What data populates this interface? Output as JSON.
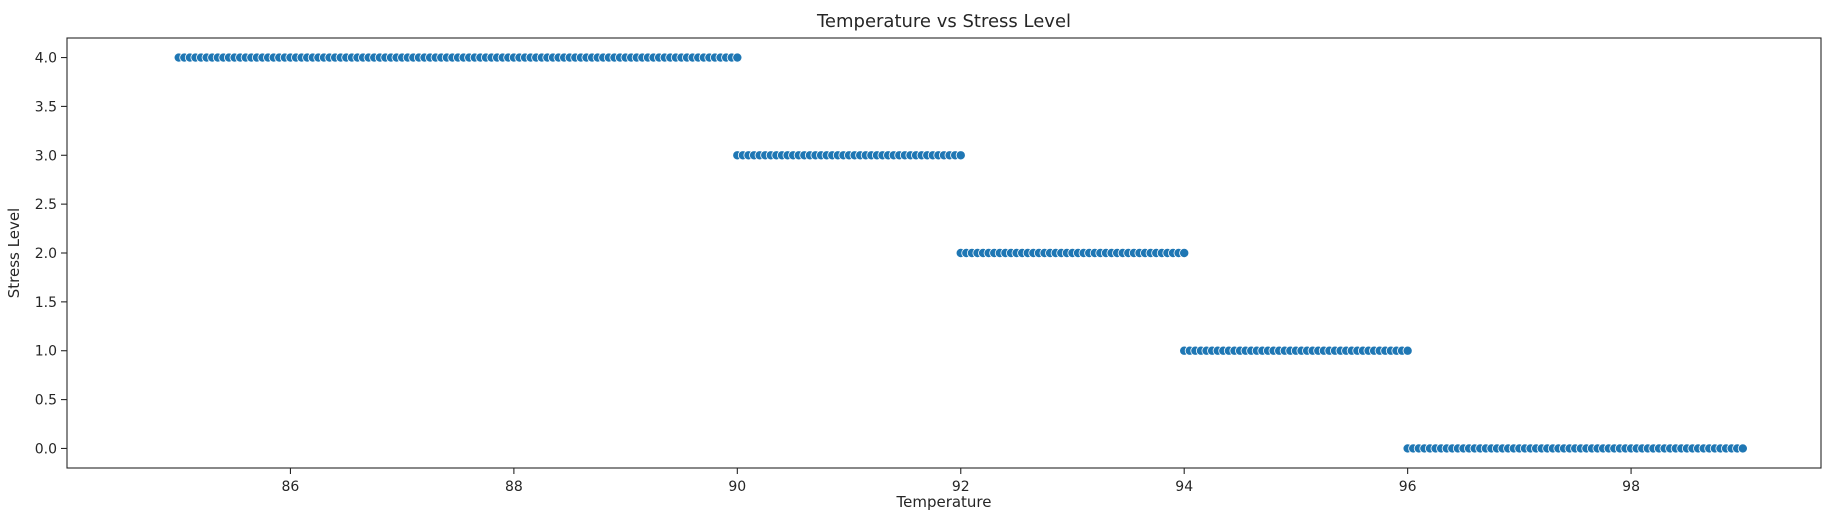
{
  "chart_data": {
    "type": "scatter",
    "title": "Temperature vs Stress Level",
    "xlabel": "Temperature",
    "ylabel": "Stress Level",
    "xlim": [
      84.0,
      99.7
    ],
    "ylim": [
      -0.2,
      4.2
    ],
    "x_ticks": [
      86,
      88,
      90,
      92,
      94,
      96,
      98
    ],
    "y_ticks": [
      0.0,
      0.5,
      1.0,
      1.5,
      2.0,
      2.5,
      3.0,
      3.5,
      4.0
    ],
    "grid": false,
    "legend": "none",
    "marker_color": "#1f77b4",
    "marker_edge_color": "#ffffff",
    "clusters": [
      {
        "stress_level": 4.0,
        "temperature_min": 85.0,
        "temperature_max": 90.0
      },
      {
        "stress_level": 3.0,
        "temperature_min": 90.0,
        "temperature_max": 92.0
      },
      {
        "stress_level": 2.0,
        "temperature_min": 92.0,
        "temperature_max": 94.0
      },
      {
        "stress_level": 1.0,
        "temperature_min": 94.0,
        "temperature_max": 96.0
      },
      {
        "stress_level": 0.0,
        "temperature_min": 96.0,
        "temperature_max": 99.0
      }
    ],
    "series": [
      {
        "points": [
          [
            85.0,
            4.0
          ],
          [
            85.05,
            4.0
          ],
          [
            85.1,
            4.0
          ],
          [
            85.15,
            4.0
          ],
          [
            85.2,
            4.0
          ],
          [
            85.25,
            4.0
          ],
          [
            85.3,
            4.0
          ],
          [
            85.35,
            4.0
          ],
          [
            85.4,
            4.0
          ],
          [
            85.45,
            4.0
          ],
          [
            85.5,
            4.0
          ],
          [
            85.55,
            4.0
          ],
          [
            85.6,
            4.0
          ],
          [
            85.65,
            4.0
          ],
          [
            85.7,
            4.0
          ],
          [
            85.75,
            4.0
          ],
          [
            85.8,
            4.0
          ],
          [
            85.85,
            4.0
          ],
          [
            85.9,
            4.0
          ],
          [
            85.95,
            4.0
          ],
          [
            86.0,
            4.0
          ],
          [
            86.05,
            4.0
          ],
          [
            86.1,
            4.0
          ],
          [
            86.15,
            4.0
          ],
          [
            86.2,
            4.0
          ],
          [
            86.25,
            4.0
          ],
          [
            86.3,
            4.0
          ],
          [
            86.35,
            4.0
          ],
          [
            86.4,
            4.0
          ],
          [
            86.45,
            4.0
          ],
          [
            86.5,
            4.0
          ],
          [
            86.55,
            4.0
          ],
          [
            86.6,
            4.0
          ],
          [
            86.65,
            4.0
          ],
          [
            86.7,
            4.0
          ],
          [
            86.75,
            4.0
          ],
          [
            86.8,
            4.0
          ],
          [
            86.85,
            4.0
          ],
          [
            86.9,
            4.0
          ],
          [
            86.95,
            4.0
          ],
          [
            87.0,
            4.0
          ],
          [
            87.05,
            4.0
          ],
          [
            87.1,
            4.0
          ],
          [
            87.15,
            4.0
          ],
          [
            87.2,
            4.0
          ],
          [
            87.25,
            4.0
          ],
          [
            87.3,
            4.0
          ],
          [
            87.35,
            4.0
          ],
          [
            87.4,
            4.0
          ],
          [
            87.45,
            4.0
          ],
          [
            87.5,
            4.0
          ],
          [
            87.55,
            4.0
          ],
          [
            87.6,
            4.0
          ],
          [
            87.65,
            4.0
          ],
          [
            87.7,
            4.0
          ],
          [
            87.75,
            4.0
          ],
          [
            87.8,
            4.0
          ],
          [
            87.85,
            4.0
          ],
          [
            87.9,
            4.0
          ],
          [
            87.95,
            4.0
          ],
          [
            88.0,
            4.0
          ],
          [
            88.05,
            4.0
          ],
          [
            88.1,
            4.0
          ],
          [
            88.15,
            4.0
          ],
          [
            88.2,
            4.0
          ],
          [
            88.25,
            4.0
          ],
          [
            88.3,
            4.0
          ],
          [
            88.35,
            4.0
          ],
          [
            88.4,
            4.0
          ],
          [
            88.45,
            4.0
          ],
          [
            88.5,
            4.0
          ],
          [
            88.55,
            4.0
          ],
          [
            88.6,
            4.0
          ],
          [
            88.65,
            4.0
          ],
          [
            88.7,
            4.0
          ],
          [
            88.75,
            4.0
          ],
          [
            88.8,
            4.0
          ],
          [
            88.85,
            4.0
          ],
          [
            88.9,
            4.0
          ],
          [
            88.95,
            4.0
          ],
          [
            89.0,
            4.0
          ],
          [
            89.05,
            4.0
          ],
          [
            89.1,
            4.0
          ],
          [
            89.15,
            4.0
          ],
          [
            89.2,
            4.0
          ],
          [
            89.25,
            4.0
          ],
          [
            89.3,
            4.0
          ],
          [
            89.35,
            4.0
          ],
          [
            89.4,
            4.0
          ],
          [
            89.45,
            4.0
          ],
          [
            89.5,
            4.0
          ],
          [
            89.55,
            4.0
          ],
          [
            89.6,
            4.0
          ],
          [
            89.65,
            4.0
          ],
          [
            89.7,
            4.0
          ],
          [
            89.75,
            4.0
          ],
          [
            89.8,
            4.0
          ],
          [
            89.85,
            4.0
          ],
          [
            89.9,
            4.0
          ],
          [
            89.95,
            4.0
          ],
          [
            90.0,
            4.0
          ],
          [
            90.0,
            3.0
          ],
          [
            90.05,
            3.0
          ],
          [
            90.1,
            3.0
          ],
          [
            90.15,
            3.0
          ],
          [
            90.2,
            3.0
          ],
          [
            90.25,
            3.0
          ],
          [
            90.3,
            3.0
          ],
          [
            90.35,
            3.0
          ],
          [
            90.4,
            3.0
          ],
          [
            90.45,
            3.0
          ],
          [
            90.5,
            3.0
          ],
          [
            90.55,
            3.0
          ],
          [
            90.6,
            3.0
          ],
          [
            90.65,
            3.0
          ],
          [
            90.7,
            3.0
          ],
          [
            90.75,
            3.0
          ],
          [
            90.8,
            3.0
          ],
          [
            90.85,
            3.0
          ],
          [
            90.9,
            3.0
          ],
          [
            90.95,
            3.0
          ],
          [
            91.0,
            3.0
          ],
          [
            91.05,
            3.0
          ],
          [
            91.1,
            3.0
          ],
          [
            91.15,
            3.0
          ],
          [
            91.2,
            3.0
          ],
          [
            91.25,
            3.0
          ],
          [
            91.3,
            3.0
          ],
          [
            91.35,
            3.0
          ],
          [
            91.4,
            3.0
          ],
          [
            91.45,
            3.0
          ],
          [
            91.5,
            3.0
          ],
          [
            91.55,
            3.0
          ],
          [
            91.6,
            3.0
          ],
          [
            91.65,
            3.0
          ],
          [
            91.7,
            3.0
          ],
          [
            91.75,
            3.0
          ],
          [
            91.8,
            3.0
          ],
          [
            91.85,
            3.0
          ],
          [
            91.9,
            3.0
          ],
          [
            91.95,
            3.0
          ],
          [
            92.0,
            3.0
          ],
          [
            92.0,
            2.0
          ],
          [
            92.05,
            2.0
          ],
          [
            92.1,
            2.0
          ],
          [
            92.15,
            2.0
          ],
          [
            92.2,
            2.0
          ],
          [
            92.25,
            2.0
          ],
          [
            92.3,
            2.0
          ],
          [
            92.35,
            2.0
          ],
          [
            92.4,
            2.0
          ],
          [
            92.45,
            2.0
          ],
          [
            92.5,
            2.0
          ],
          [
            92.55,
            2.0
          ],
          [
            92.6,
            2.0
          ],
          [
            92.65,
            2.0
          ],
          [
            92.7,
            2.0
          ],
          [
            92.75,
            2.0
          ],
          [
            92.8,
            2.0
          ],
          [
            92.85,
            2.0
          ],
          [
            92.9,
            2.0
          ],
          [
            92.95,
            2.0
          ],
          [
            93.0,
            2.0
          ],
          [
            93.05,
            2.0
          ],
          [
            93.1,
            2.0
          ],
          [
            93.15,
            2.0
          ],
          [
            93.2,
            2.0
          ],
          [
            93.25,
            2.0
          ],
          [
            93.3,
            2.0
          ],
          [
            93.35,
            2.0
          ],
          [
            93.4,
            2.0
          ],
          [
            93.45,
            2.0
          ],
          [
            93.5,
            2.0
          ],
          [
            93.55,
            2.0
          ],
          [
            93.6,
            2.0
          ],
          [
            93.65,
            2.0
          ],
          [
            93.7,
            2.0
          ],
          [
            93.75,
            2.0
          ],
          [
            93.8,
            2.0
          ],
          [
            93.85,
            2.0
          ],
          [
            93.9,
            2.0
          ],
          [
            93.95,
            2.0
          ],
          [
            94.0,
            2.0
          ],
          [
            94.0,
            1.0
          ],
          [
            94.05,
            1.0
          ],
          [
            94.1,
            1.0
          ],
          [
            94.15,
            1.0
          ],
          [
            94.2,
            1.0
          ],
          [
            94.25,
            1.0
          ],
          [
            94.3,
            1.0
          ],
          [
            94.35,
            1.0
          ],
          [
            94.4,
            1.0
          ],
          [
            94.45,
            1.0
          ],
          [
            94.5,
            1.0
          ],
          [
            94.55,
            1.0
          ],
          [
            94.6,
            1.0
          ],
          [
            94.65,
            1.0
          ],
          [
            94.7,
            1.0
          ],
          [
            94.75,
            1.0
          ],
          [
            94.8,
            1.0
          ],
          [
            94.85,
            1.0
          ],
          [
            94.9,
            1.0
          ],
          [
            94.95,
            1.0
          ],
          [
            95.0,
            1.0
          ],
          [
            95.05,
            1.0
          ],
          [
            95.1,
            1.0
          ],
          [
            95.15,
            1.0
          ],
          [
            95.2,
            1.0
          ],
          [
            95.25,
            1.0
          ],
          [
            95.3,
            1.0
          ],
          [
            95.35,
            1.0
          ],
          [
            95.4,
            1.0
          ],
          [
            95.45,
            1.0
          ],
          [
            95.5,
            1.0
          ],
          [
            95.55,
            1.0
          ],
          [
            95.6,
            1.0
          ],
          [
            95.65,
            1.0
          ],
          [
            95.7,
            1.0
          ],
          [
            95.75,
            1.0
          ],
          [
            95.8,
            1.0
          ],
          [
            95.85,
            1.0
          ],
          [
            95.9,
            1.0
          ],
          [
            95.95,
            1.0
          ],
          [
            96.0,
            1.0
          ],
          [
            96.0,
            0.0
          ],
          [
            96.05,
            0.0
          ],
          [
            96.1,
            0.0
          ],
          [
            96.15,
            0.0
          ],
          [
            96.2,
            0.0
          ],
          [
            96.25,
            0.0
          ],
          [
            96.3,
            0.0
          ],
          [
            96.35,
            0.0
          ],
          [
            96.4,
            0.0
          ],
          [
            96.45,
            0.0
          ],
          [
            96.5,
            0.0
          ],
          [
            96.55,
            0.0
          ],
          [
            96.6,
            0.0
          ],
          [
            96.65,
            0.0
          ],
          [
            96.7,
            0.0
          ],
          [
            96.75,
            0.0
          ],
          [
            96.8,
            0.0
          ],
          [
            96.85,
            0.0
          ],
          [
            96.9,
            0.0
          ],
          [
            96.95,
            0.0
          ],
          [
            97.0,
            0.0
          ],
          [
            97.05,
            0.0
          ],
          [
            97.1,
            0.0
          ],
          [
            97.15,
            0.0
          ],
          [
            97.2,
            0.0
          ],
          [
            97.25,
            0.0
          ],
          [
            97.3,
            0.0
          ],
          [
            97.35,
            0.0
          ],
          [
            97.4,
            0.0
          ],
          [
            97.45,
            0.0
          ],
          [
            97.5,
            0.0
          ],
          [
            97.55,
            0.0
          ],
          [
            97.6,
            0.0
          ],
          [
            97.65,
            0.0
          ],
          [
            97.7,
            0.0
          ],
          [
            97.75,
            0.0
          ],
          [
            97.8,
            0.0
          ],
          [
            97.85,
            0.0
          ],
          [
            97.9,
            0.0
          ],
          [
            97.95,
            0.0
          ],
          [
            98.0,
            0.0
          ],
          [
            98.05,
            0.0
          ],
          [
            98.1,
            0.0
          ],
          [
            98.15,
            0.0
          ],
          [
            98.2,
            0.0
          ],
          [
            98.25,
            0.0
          ],
          [
            98.3,
            0.0
          ],
          [
            98.35,
            0.0
          ],
          [
            98.4,
            0.0
          ],
          [
            98.45,
            0.0
          ],
          [
            98.5,
            0.0
          ],
          [
            98.55,
            0.0
          ],
          [
            98.6,
            0.0
          ],
          [
            98.65,
            0.0
          ],
          [
            98.7,
            0.0
          ],
          [
            98.75,
            0.0
          ],
          [
            98.8,
            0.0
          ],
          [
            98.85,
            0.0
          ],
          [
            98.9,
            0.0
          ],
          [
            98.95,
            0.0
          ],
          [
            99.0,
            0.0
          ]
        ]
      }
    ]
  }
}
